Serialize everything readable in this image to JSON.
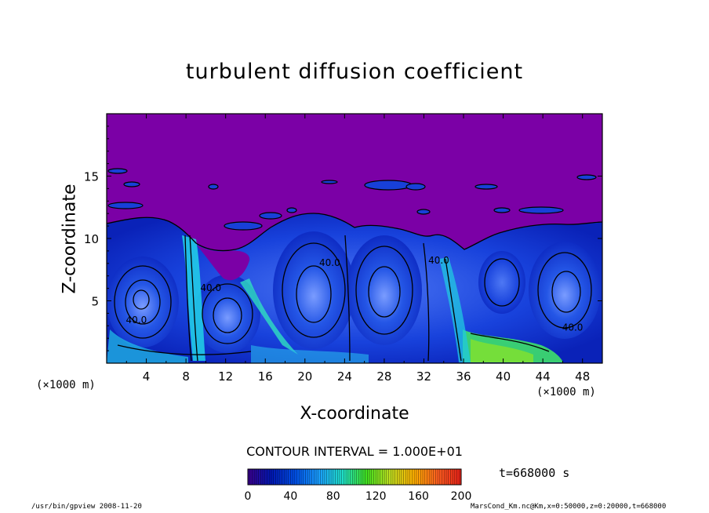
{
  "chart_data": {
    "type": "heatmap",
    "title": "turbulent diffusion coefficient",
    "xlabel": "X-coordinate",
    "ylabel": "Z-coordinate",
    "x_unit": "(×1000 m)",
    "xlim": [
      0,
      50
    ],
    "ylim": [
      0,
      20
    ],
    "x_ticks": [
      4,
      8,
      12,
      16,
      20,
      24,
      28,
      32,
      36,
      40,
      44,
      48
    ],
    "y_ticks": [
      5,
      10,
      15
    ],
    "contour_labels": [
      {
        "text": "40.0",
        "x": 3.0,
        "z": 3.2
      },
      {
        "text": "40.0",
        "x": 10.5,
        "z": 5.8
      },
      {
        "text": "40.0",
        "x": 22.5,
        "z": 7.8
      },
      {
        "text": "40.0",
        "x": 33.5,
        "z": 8.0
      },
      {
        "text": "40.0",
        "x": 47.0,
        "z": 2.6
      }
    ],
    "colorbar": {
      "min": 0,
      "max": 200,
      "ticks": [
        0,
        40,
        80,
        120,
        160,
        200
      ],
      "colors": [
        "#3a008c",
        "#0018b4",
        "#0050e8",
        "#1aa0ff",
        "#20e0c8",
        "#40e020",
        "#c0e020",
        "#ffb000",
        "#ff6020",
        "#e82018"
      ]
    },
    "contour_interval": "CONTOUR INTERVAL = 1.000E+01",
    "time_label": "t=668000 s"
  },
  "footer": {
    "left": "/usr/bin/gpview  2008-11-20",
    "right": "MarsCond_Km.nc@Km,x=0:50000,z=0:20000,t=668000"
  },
  "colors": {
    "background_region": "#7b00a6",
    "turbulent_base": "#1a52e0",
    "text": "#000000"
  }
}
